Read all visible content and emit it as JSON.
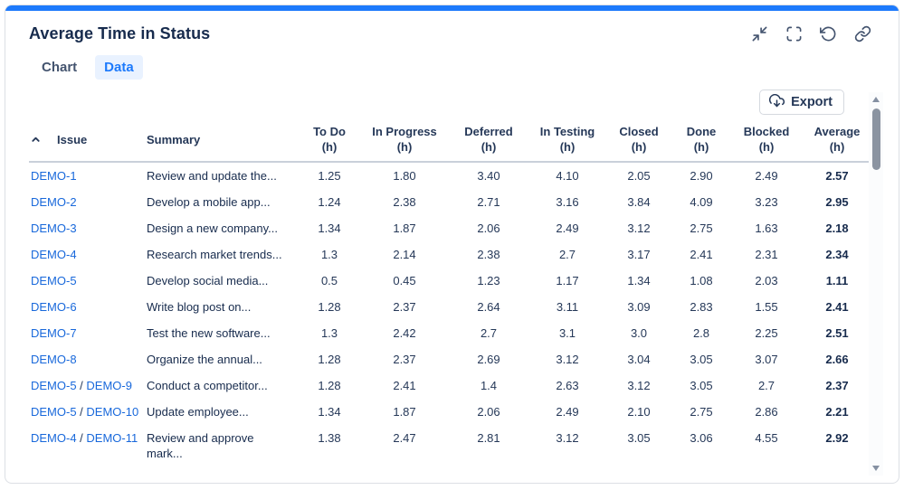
{
  "widget": {
    "title": "Average Time in Status"
  },
  "colors": {
    "accent": "#1D7AFC",
    "link": "#1868DB",
    "tab_active_bg": "#E9F2FF",
    "header_text": "#253858",
    "body_text": "#172B4D"
  },
  "toolbar": {
    "icons": [
      "collapse-icon",
      "fullscreen-icon",
      "refresh-icon",
      "link-icon"
    ]
  },
  "tabs": [
    {
      "label": "Chart",
      "active": false
    },
    {
      "label": "Data",
      "active": true
    }
  ],
  "export": {
    "label": "Export",
    "icon": "cloud-download-icon"
  },
  "table": {
    "sort": {
      "column": "Issue",
      "direction": "ascending"
    },
    "columns": [
      {
        "id": "issue",
        "label": "Issue",
        "unit": "",
        "align": "left"
      },
      {
        "id": "summary",
        "label": "Summary",
        "unit": "",
        "align": "left"
      },
      {
        "id": "todo",
        "label": "To Do",
        "unit": "(h)",
        "align": "center"
      },
      {
        "id": "inprogress",
        "label": "In Progress",
        "unit": "(h)",
        "align": "center"
      },
      {
        "id": "deferred",
        "label": "Deferred",
        "unit": "(h)",
        "align": "center"
      },
      {
        "id": "intesting",
        "label": "In Testing",
        "unit": "(h)",
        "align": "center"
      },
      {
        "id": "closed",
        "label": "Closed",
        "unit": "(h)",
        "align": "center"
      },
      {
        "id": "done",
        "label": "Done",
        "unit": "(h)",
        "align": "center"
      },
      {
        "id": "blocked",
        "label": "Blocked",
        "unit": "(h)",
        "align": "center"
      },
      {
        "id": "average",
        "label": "Average",
        "unit": "(h)",
        "align": "center"
      }
    ],
    "rows": [
      {
        "issue_links": [
          "DEMO-1"
        ],
        "summary": "Review and update the...",
        "values": [
          "1.25",
          "1.80",
          "3.40",
          "4.10",
          "2.05",
          "2.90",
          "2.49"
        ],
        "average": "2.57"
      },
      {
        "issue_links": [
          "DEMO-2"
        ],
        "summary": "Develop a mobile app...",
        "values": [
          "1.24",
          "2.38",
          "2.71",
          "3.16",
          "3.84",
          "4.09",
          "3.23"
        ],
        "average": "2.95"
      },
      {
        "issue_links": [
          "DEMO-3"
        ],
        "summary": "Design a new company...",
        "values": [
          "1.34",
          "1.87",
          "2.06",
          "2.49",
          "3.12",
          "2.75",
          "1.63"
        ],
        "average": "2.18"
      },
      {
        "issue_links": [
          "DEMO-4"
        ],
        "summary": "Research market trends...",
        "values": [
          "1.3",
          "2.14",
          "2.38",
          "2.7",
          "3.17",
          "2.41",
          "2.31"
        ],
        "average": "2.34"
      },
      {
        "issue_links": [
          "DEMO-5"
        ],
        "summary": "Develop social media...",
        "values": [
          "0.5",
          "0.45",
          "1.23",
          "1.17",
          "1.34",
          "1.08",
          "2.03"
        ],
        "average": "1.11"
      },
      {
        "issue_links": [
          "DEMO-6"
        ],
        "summary": "Write blog post on...",
        "values": [
          "1.28",
          "2.37",
          "2.64",
          "3.11",
          "3.09",
          "2.83",
          "1.55"
        ],
        "average": "2.41"
      },
      {
        "issue_links": [
          "DEMO-7"
        ],
        "summary": "Test the new software...",
        "values": [
          "1.3",
          "2.42",
          "2.7",
          "3.1",
          "3.0",
          "2.8",
          "2.25"
        ],
        "average": "2.51"
      },
      {
        "issue_links": [
          "DEMO-8"
        ],
        "summary": "Organize the annual...",
        "values": [
          "1.28",
          "2.37",
          "2.69",
          "3.12",
          "3.04",
          "3.05",
          "3.07"
        ],
        "average": "2.66"
      },
      {
        "issue_links": [
          "DEMO-5",
          "DEMO-9"
        ],
        "summary": "Conduct a competitor...",
        "values": [
          "1.28",
          "2.41",
          "1.4",
          "2.63",
          "3.12",
          "3.05",
          "2.7"
        ],
        "average": "2.37"
      },
      {
        "issue_links": [
          "DEMO-5",
          "DEMO-10"
        ],
        "summary": "Update employee...",
        "values": [
          "1.34",
          "1.87",
          "2.06",
          "2.49",
          "2.10",
          "2.75",
          "2.86"
        ],
        "average": "2.21"
      },
      {
        "issue_links": [
          "DEMO-4",
          "DEMO-11"
        ],
        "summary": "Review and approve\nmark...",
        "values": [
          "1.38",
          "2.47",
          "2.81",
          "3.12",
          "3.05",
          "3.06",
          "4.55"
        ],
        "average": "2.92"
      }
    ]
  }
}
